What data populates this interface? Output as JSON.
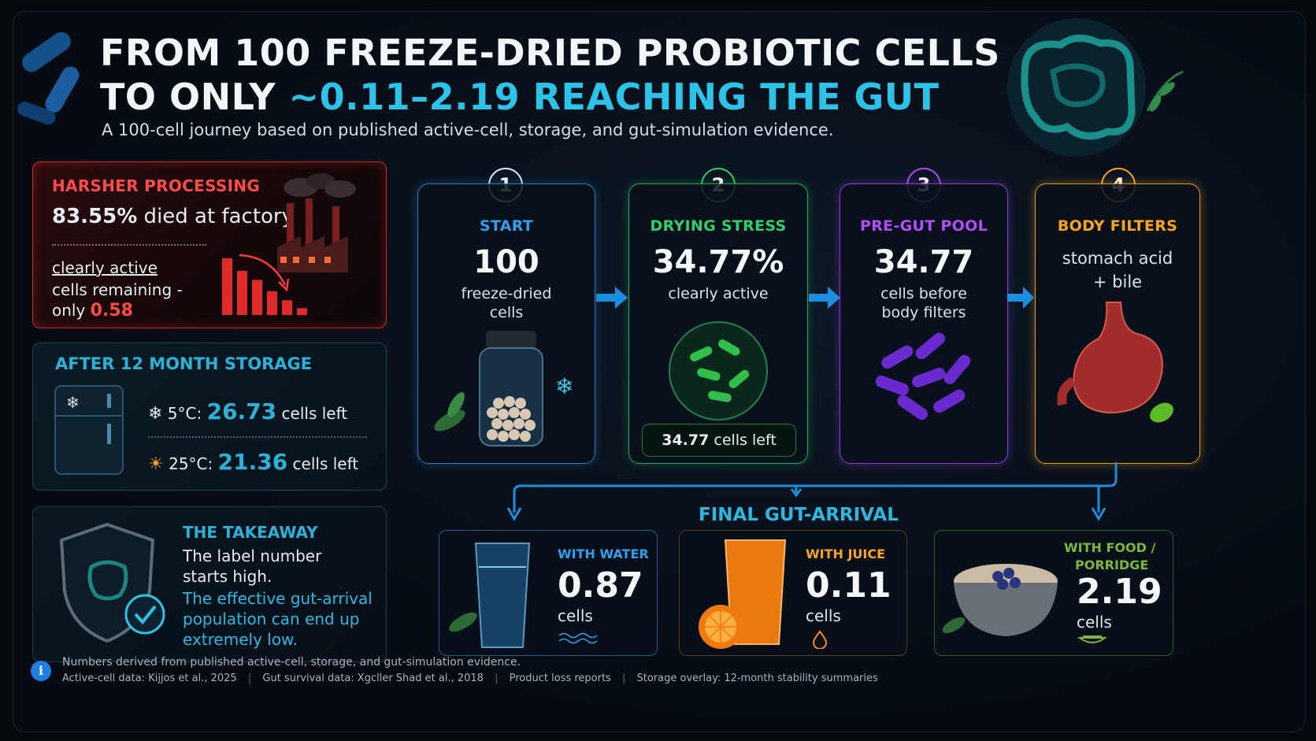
{
  "header": {
    "title_line1": "FROM 100 FREEZE-DRIED PROBIOTIC CELLS",
    "title_line2_prefix": "TO ONLY ",
    "title_line2_highlight": "~0.11–2.19 REACHING THE GUT",
    "subtitle": "A 100-cell journey based on published active-cell, storage, and gut-simulation evidence."
  },
  "harsh": {
    "heading": "HARSHER PROCESSING",
    "stat_value": "83.55%",
    "stat_text": " died at factory",
    "line1": "clearly active",
    "line2": "cells remaining -",
    "line3_prefix": "only ",
    "line3_value": "0.58",
    "bars": [
      1.0,
      0.78,
      0.62,
      0.42,
      0.26,
      0.12
    ]
  },
  "storage": {
    "heading": "AFTER 12 MONTH STORAGE",
    "rows": [
      {
        "temp": "5°C:",
        "value": "26.73",
        "suffix": "cells left"
      },
      {
        "temp": "25°C:",
        "value": "21.36",
        "suffix": "cells left"
      }
    ]
  },
  "takeaway": {
    "heading": "THE TAKEAWAY",
    "line1": "The label number",
    "line2": "starts high.",
    "line3": "The effective gut-arrival",
    "line4": "population can end up",
    "line5": "extremely low."
  },
  "steps": [
    {
      "num": "1",
      "label": "START",
      "big": "100",
      "sub1": "freeze-dried",
      "sub2": "cells"
    },
    {
      "num": "2",
      "label": "DRYING STRESS",
      "big": "34.77%",
      "sub1": "clearly active",
      "pill_value": "34.77",
      "pill_text": " cells left"
    },
    {
      "num": "3",
      "label": "PRE-GUT POOL",
      "big": "34.77",
      "sub1": "cells before",
      "sub2": "body filters"
    },
    {
      "num": "4",
      "label": "BODY FILTERS",
      "sub1": "stomach acid",
      "sub2": "+ bile"
    }
  ],
  "final": {
    "title": "FINAL GUT-ARRIVAL",
    "items": [
      {
        "label": "WITH WATER",
        "value": "0.87",
        "unit": "cells"
      },
      {
        "label": "WITH JUICE",
        "value": "0.11",
        "unit": "cells"
      },
      {
        "label_line1": "WITH FOOD /",
        "label_line2": "PORRIDGE",
        "value": "2.19",
        "unit": "cells"
      }
    ]
  },
  "footer": {
    "note": "Numbers derived from published active-cell, storage, and gut-simulation evidence.",
    "src1": "Active-cell data: Kijjos et al., 2025",
    "src2": "Gut survival data: Xgcller Shad et al., 2018",
    "src3": "Product loss reports",
    "src4": "Storage overlay: 12-month stability summaries",
    "sep": "|"
  },
  "colors": {
    "accent_teal": "#2bc4e8",
    "red": "#ff4a4a",
    "green": "#2fd06a",
    "purple": "#b24cff",
    "orange": "#ffa41c"
  }
}
